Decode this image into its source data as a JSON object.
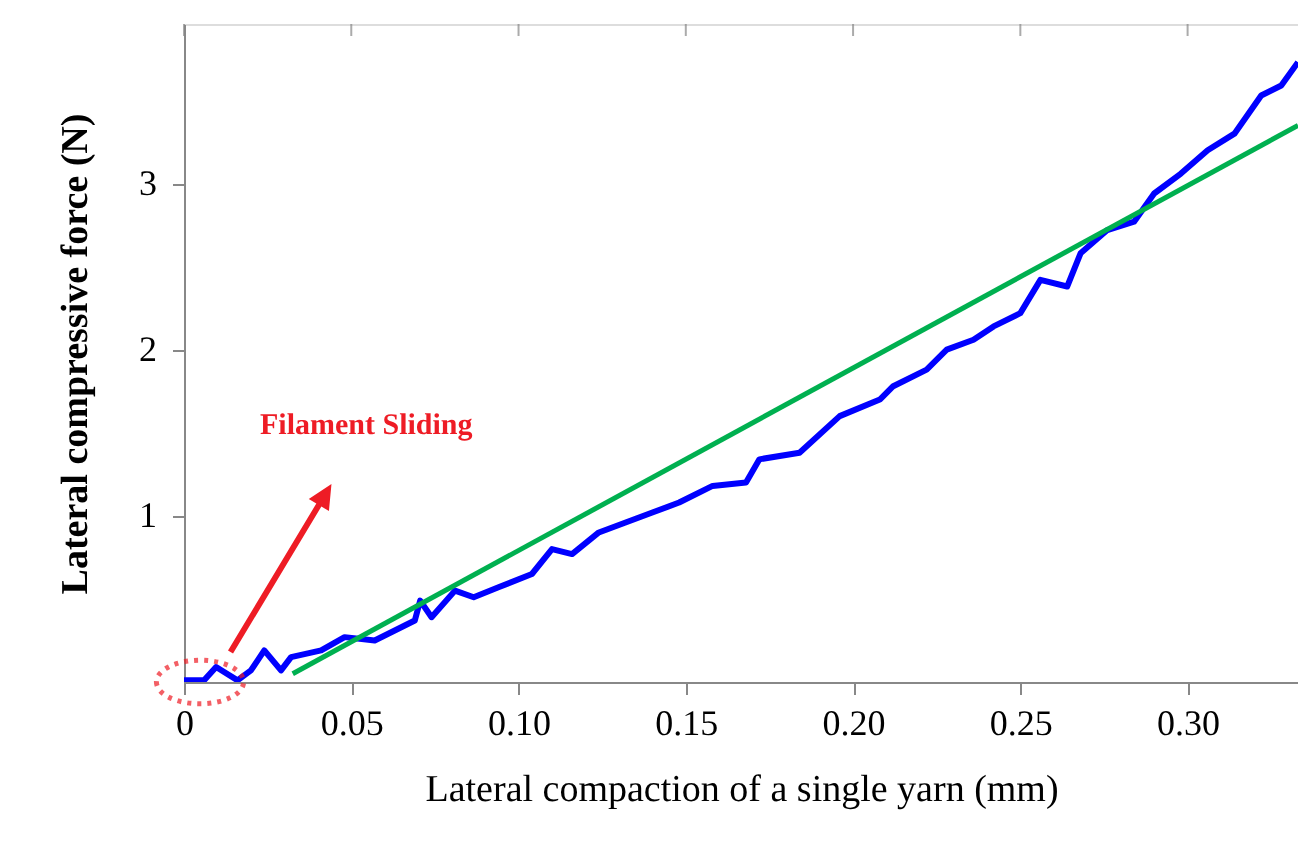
{
  "chart_data": {
    "type": "line",
    "xlabel": "Lateral compaction of a single yarn (mm)",
    "ylabel": "Lateral compressive force (N)",
    "xlim": [
      0,
      0.333
    ],
    "ylim": [
      0,
      3.96
    ],
    "xticks": [
      0,
      {
        "value": 0.05,
        "label": "0.05"
      },
      {
        "value": 0.1,
        "label": "0.10"
      },
      {
        "value": 0.15,
        "label": "0.15"
      },
      {
        "value": 0.2,
        "label": "0.20"
      },
      {
        "value": 0.25,
        "label": "0.25"
      },
      {
        "value": 0.3,
        "label": "0.30"
      }
    ],
    "yticks": [
      1,
      2,
      3
    ],
    "grid": false,
    "marker": "none",
    "line_style": "solid",
    "annotations": [
      "Filament Sliding"
    ],
    "series": [
      {
        "color": "#0000ff",
        "x": [
          0,
          0.006,
          0.0096,
          0.016,
          0.02,
          0.024,
          0.029,
          0.032,
          0.041,
          0.048,
          0.057,
          0.069,
          0.0706,
          0.074,
          0.081,
          0.0866,
          0.094,
          0.104,
          0.11,
          0.116,
          0.124,
          0.132,
          0.14,
          0.148,
          0.158,
          0.168,
          0.172,
          0.184,
          0.196,
          0.208,
          0.212,
          0.222,
          0.228,
          0.236,
          0.242,
          0.25,
          0.256,
          0.264,
          0.268,
          0.276,
          0.284,
          0.29,
          0.298,
          0.306,
          0.314,
          0.322,
          0.328,
          0.333
        ],
        "values": [
          0.01,
          0.01,
          0.09,
          0.01,
          0.07,
          0.19,
          0.07,
          0.15,
          0.19,
          0.27,
          0.25,
          0.37,
          0.49,
          0.39,
          0.55,
          0.51,
          0.57,
          0.65,
          0.8,
          0.77,
          0.9,
          0.96,
          1.02,
          1.08,
          1.18,
          1.2,
          1.34,
          1.38,
          1.6,
          1.7,
          1.78,
          1.88,
          2.0,
          2.06,
          2.14,
          2.22,
          2.42,
          2.38,
          2.58,
          2.72,
          2.77,
          2.94,
          3.06,
          3.2,
          3.3,
          3.53,
          3.59,
          3.73
        ]
      },
      {
        "color": "#00b050",
        "x": [
          0.0325,
          0.333
        ],
        "values": [
          0.05,
          3.35
        ]
      }
    ]
  }
}
